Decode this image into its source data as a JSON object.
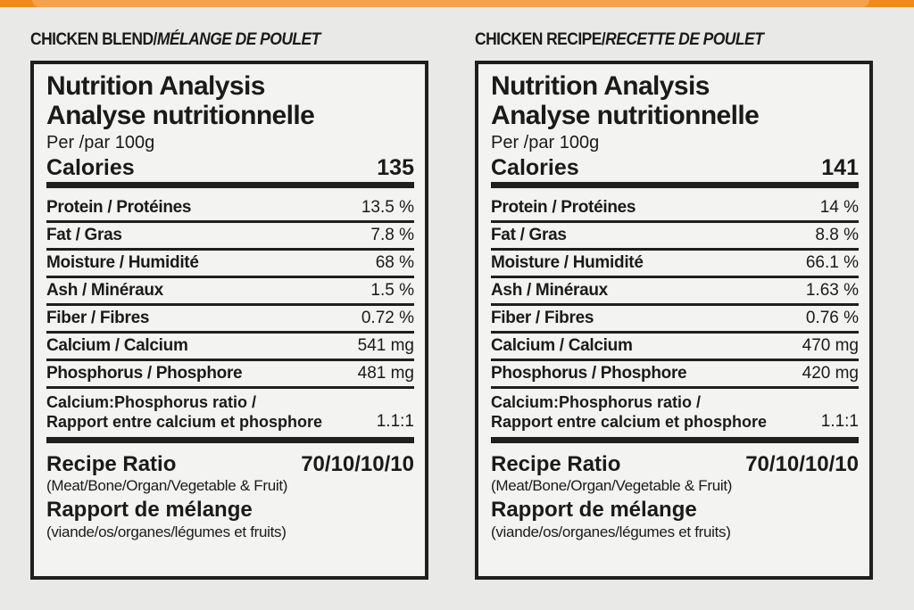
{
  "panels": [
    {
      "heading_en": "CHICKEN BLEND/",
      "heading_fr": "MÉLANGE DE POULET",
      "title_en": "Nutrition Analysis",
      "title_fr": "Analyse nutritionnelle",
      "per": "Per /par 100g",
      "calories_label": "Calories",
      "calories_value": "135",
      "rows": [
        {
          "name": "Protein / Protéines",
          "value": "13.5 %"
        },
        {
          "name": "Fat / Gras",
          "value": "7.8 %"
        },
        {
          "name": "Moisture / Humidité",
          "value": "68 %"
        },
        {
          "name": "Ash / Minéraux",
          "value": "1.5 %"
        },
        {
          "name": "Fiber / Fibres",
          "value": "0.72 %"
        },
        {
          "name": "Calcium / Calcium",
          "value": "541 mg"
        },
        {
          "name": "Phosphorus / Phosphore",
          "value": "481 mg"
        }
      ],
      "ratio_line1": "Calcium:Phosphorus ratio /",
      "ratio_line2": "Rapport entre calcium et phosphore",
      "ratio_value": "1.1:1",
      "recipe_label": "Recipe Ratio",
      "recipe_value": "70/10/10/10",
      "recipe_sub_en": "(Meat/Bone/Organ/Vegetable & Fruit)",
      "recipe_label_fr": "Rapport de mélange",
      "recipe_sub_fr": "(viande/os/organes/légumes et fruits)"
    },
    {
      "heading_en": "CHICKEN RECIPE/",
      "heading_fr": "RECETTE DE POULET",
      "title_en": "Nutrition Analysis",
      "title_fr": "Analyse nutritionnelle",
      "per": "Per /par 100g",
      "calories_label": "Calories",
      "calories_value": "141",
      "rows": [
        {
          "name": "Protein / Protéines",
          "value": "14 %"
        },
        {
          "name": "Fat / Gras",
          "value": "8.8 %"
        },
        {
          "name": "Moisture / Humidité",
          "value": "66.1 %"
        },
        {
          "name": "Ash / Minéraux",
          "value": "1.63 %"
        },
        {
          "name": "Fiber / Fibres",
          "value": "0.76 %"
        },
        {
          "name": "Calcium / Calcium",
          "value": "470 mg"
        },
        {
          "name": "Phosphorus / Phosphore",
          "value": "420 mg"
        }
      ],
      "ratio_line1": "Calcium:Phosphorus ratio /",
      "ratio_line2": "Rapport entre calcium et phosphore",
      "ratio_value": "1.1:1",
      "recipe_label": "Recipe Ratio",
      "recipe_value": "70/10/10/10",
      "recipe_sub_en": "(Meat/Bone/Organ/Vegetable & Fruit)",
      "recipe_label_fr": "Rapport de mélange",
      "recipe_sub_fr": "(viande/os/organes/légumes et fruits)"
    }
  ],
  "colors": {
    "accent": "#f08a1c",
    "ink": "#1f1f1f",
    "background": "#e9e9e7"
  }
}
